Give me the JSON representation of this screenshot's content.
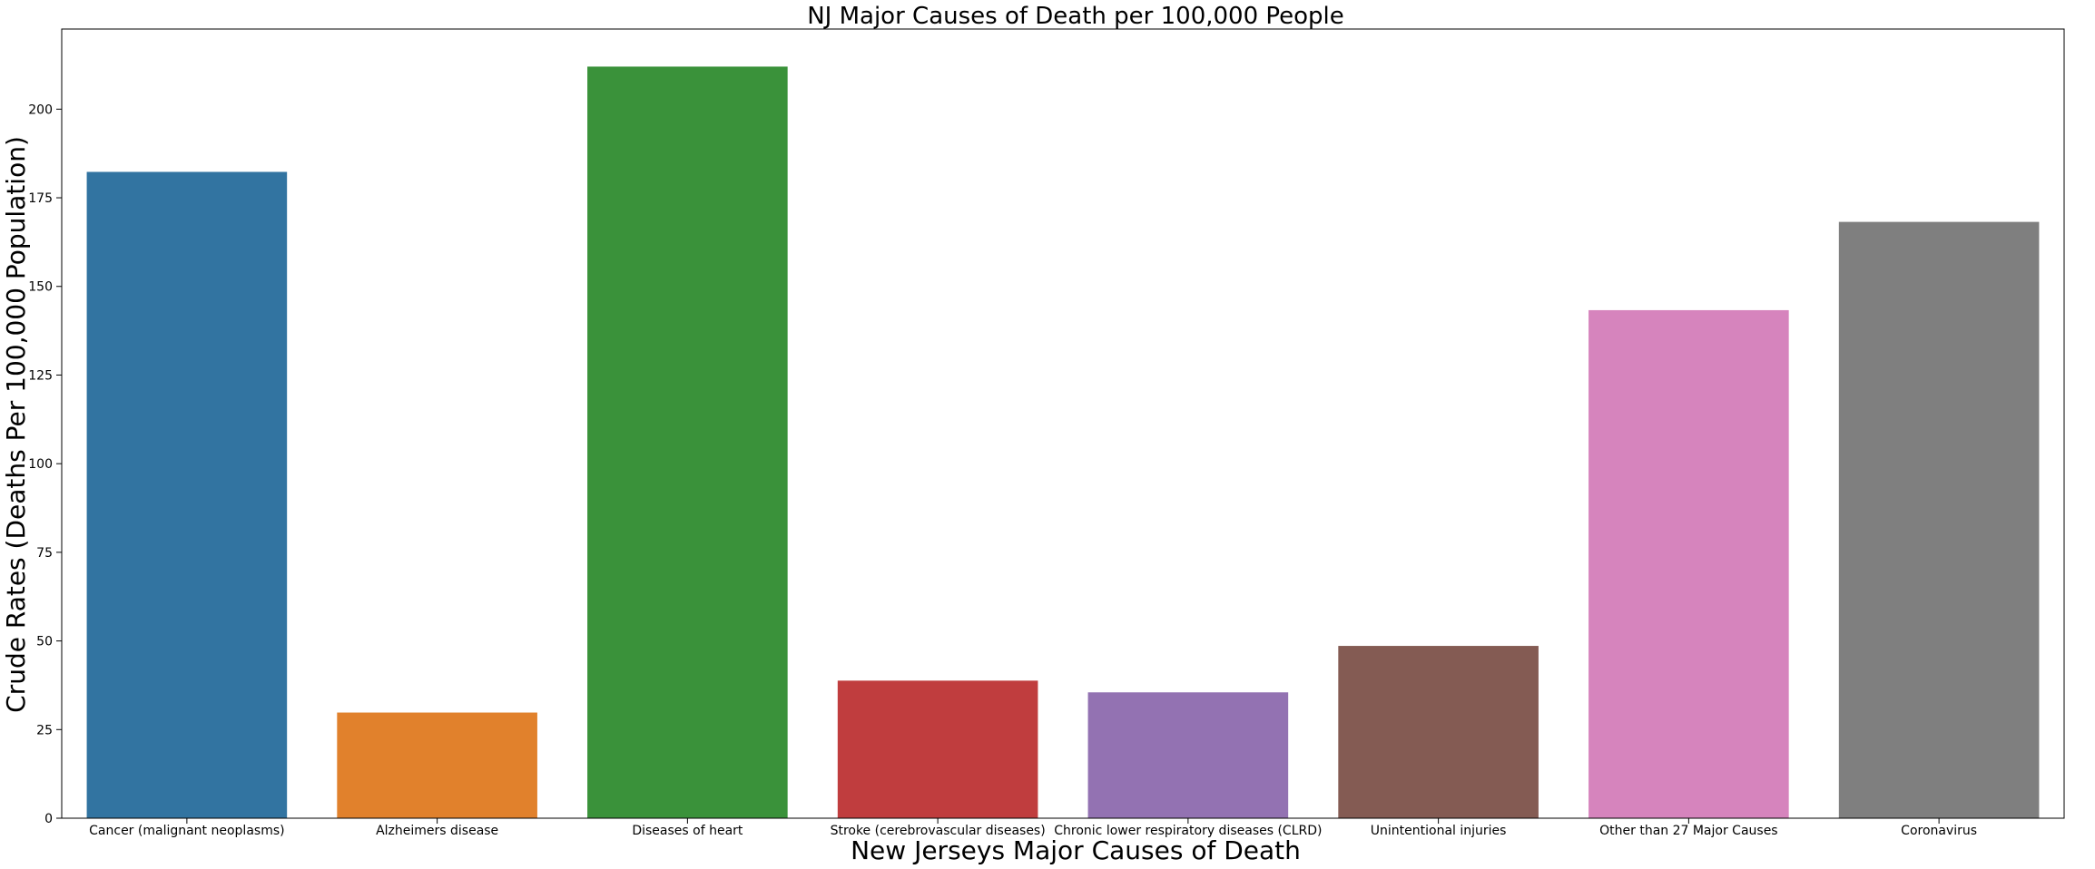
{
  "chart_data": {
    "type": "bar",
    "title": "NJ Major Causes of Death per 100,000 People",
    "xlabel": "New Jerseys Major Causes of Death",
    "ylabel": "Crude Rates (Deaths Per 100,000 Population)",
    "categories": [
      "Cancer (malignant neoplasms)",
      "Alzheimers disease",
      "Diseases of heart",
      "Stroke (cerebrovascular diseases)",
      "Chronic lower respiratory diseases (CLRD)",
      "Unintentional injuries",
      "Other than 27 Major Causes",
      "Coronavirus"
    ],
    "values": [
      182.3,
      29.8,
      212.0,
      38.8,
      35.5,
      48.6,
      143.3,
      168.2
    ],
    "colors": [
      "#3274a1",
      "#e1812c",
      "#3a923a",
      "#c03d3e",
      "#9372b2",
      "#845b53",
      "#d684bd",
      "#7f7f7f"
    ],
    "ylim": [
      0,
      222.6
    ],
    "yticks": [
      0,
      25,
      50,
      75,
      100,
      125,
      150,
      175,
      200
    ],
    "grid": false,
    "legend": "none"
  }
}
